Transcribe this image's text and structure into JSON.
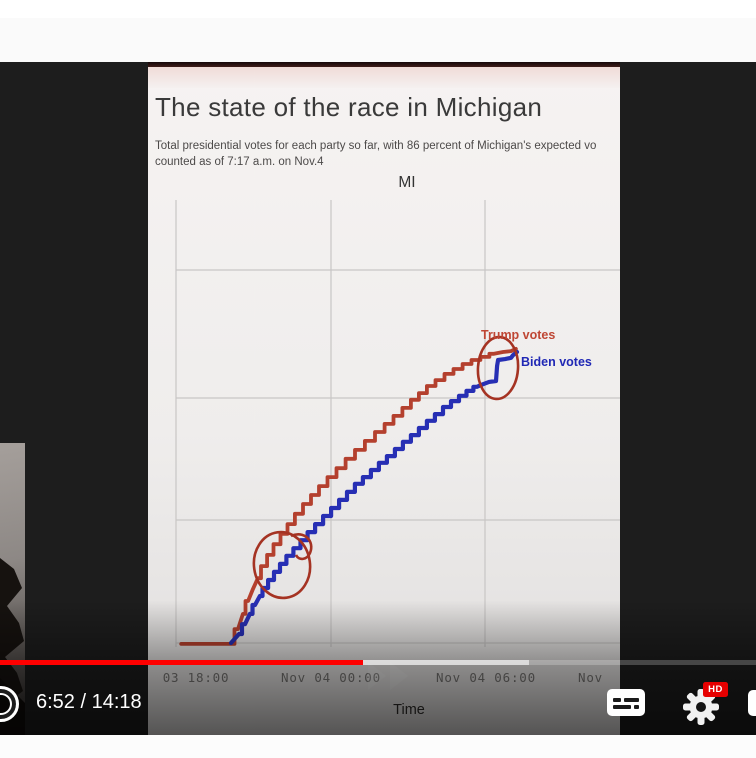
{
  "player": {
    "time_display": "6:52 / 14:18",
    "current_time": "6:52",
    "duration": "14:18",
    "progress_percent": 48,
    "hd_badge_label": "HD",
    "progress_color": "#ff0000",
    "hd_badge_color": "#e60000",
    "icons": {
      "left_partial": "ring-icon",
      "captions": "closed-captions-icon",
      "settings": "gear-icon",
      "right_partial": "miniplayer-icon",
      "seek_ghost": "fast-forward-icon"
    }
  },
  "chart": {
    "title": "The state of the race in Michigan",
    "subtitle_line1": "Total presidential votes for each party so far, with 86 percent of Michigan's expected vo",
    "subtitle_line2": "counted as of 7:17 a.m. on Nov.4",
    "plot_title": "MI",
    "x_axis_label": "Time",
    "x_ticks": [
      "03 18:00",
      "Nov 04 00:00",
      "Nov 04 06:00",
      "Nov"
    ],
    "trump_label": "Trump votes",
    "biden_label": "Biden votes",
    "colors": {
      "trump": "#b4402e",
      "biden": "#272fb4",
      "annotation": "#a53323",
      "gridline": "#c8c6c5"
    }
  },
  "chart_data": {
    "type": "line",
    "title": "MI",
    "xlabel": "Time",
    "ylabel": "",
    "x_unit": "hours since Nov 03 18:00",
    "x_tick_positions_hours": [
      0,
      6,
      12,
      18
    ],
    "x_tick_labels": [
      "03 18:00",
      "Nov 04 00:00",
      "Nov 04 06:00",
      "Nov"
    ],
    "y_axis_note": "y-axis labels not visible; values normalized 0-1 of plot height",
    "legend_position": "inline labels at line ends",
    "grid": true,
    "series": [
      {
        "name": "Trump votes",
        "color": "#b4402e",
        "points": [
          [
            0.2,
            0.007
          ],
          [
            2.13,
            0.007
          ],
          [
            2.4,
            0.04
          ],
          [
            2.59,
            0.074
          ],
          [
            2.79,
            0.103
          ],
          [
            2.98,
            0.13
          ],
          [
            3.17,
            0.154
          ],
          [
            3.41,
            0.181
          ],
          [
            3.64,
            0.206
          ],
          [
            3.91,
            0.23
          ],
          [
            4.18,
            0.253
          ],
          [
            4.45,
            0.275
          ],
          [
            4.76,
            0.298
          ],
          [
            5.07,
            0.32
          ],
          [
            5.38,
            0.34
          ],
          [
            5.69,
            0.36
          ],
          [
            6.04,
            0.38
          ],
          [
            6.39,
            0.4
          ],
          [
            6.74,
            0.421
          ],
          [
            7.12,
            0.441
          ],
          [
            7.51,
            0.461
          ],
          [
            7.9,
            0.481
          ],
          [
            8.25,
            0.499
          ],
          [
            8.59,
            0.517
          ],
          [
            8.94,
            0.535
          ],
          [
            9.25,
            0.553
          ],
          [
            9.56,
            0.568
          ],
          [
            9.87,
            0.584
          ],
          [
            10.22,
            0.597
          ],
          [
            10.57,
            0.611
          ],
          [
            10.92,
            0.622
          ],
          [
            11.27,
            0.633
          ],
          [
            11.61,
            0.642
          ],
          [
            11.96,
            0.649
          ],
          [
            12.31,
            0.656
          ],
          [
            12.66,
            0.66
          ],
          [
            12.97,
            0.662
          ],
          [
            13.16,
            0.667
          ]
        ]
      },
      {
        "name": "Biden votes",
        "color": "#272fb4",
        "points": [
          [
            2.13,
            0.009
          ],
          [
            2.44,
            0.029
          ],
          [
            2.67,
            0.051
          ],
          [
            2.86,
            0.074
          ],
          [
            3.06,
            0.094
          ],
          [
            3.25,
            0.114
          ],
          [
            3.45,
            0.132
          ],
          [
            3.68,
            0.15
          ],
          [
            3.91,
            0.168
          ],
          [
            4.14,
            0.186
          ],
          [
            4.41,
            0.204
          ],
          [
            4.68,
            0.221
          ],
          [
            4.96,
            0.239
          ],
          [
            5.23,
            0.257
          ],
          [
            5.54,
            0.275
          ],
          [
            5.85,
            0.293
          ],
          [
            6.16,
            0.311
          ],
          [
            6.47,
            0.329
          ],
          [
            6.77,
            0.347
          ],
          [
            7.08,
            0.365
          ],
          [
            7.39,
            0.38
          ],
          [
            7.7,
            0.396
          ],
          [
            8.01,
            0.412
          ],
          [
            8.32,
            0.427
          ],
          [
            8.63,
            0.443
          ],
          [
            8.94,
            0.459
          ],
          [
            9.25,
            0.474
          ],
          [
            9.56,
            0.49
          ],
          [
            9.87,
            0.506
          ],
          [
            10.18,
            0.521
          ],
          [
            10.49,
            0.537
          ],
          [
            10.8,
            0.55
          ],
          [
            11.11,
            0.562
          ],
          [
            11.38,
            0.573
          ],
          [
            11.65,
            0.582
          ],
          [
            11.89,
            0.588
          ],
          [
            12.12,
            0.593
          ],
          [
            12.39,
            0.595
          ],
          [
            12.43,
            0.629
          ],
          [
            12.47,
            0.642
          ],
          [
            12.74,
            0.644
          ],
          [
            12.97,
            0.647
          ],
          [
            13.05,
            0.653
          ],
          [
            13.2,
            0.66
          ]
        ]
      }
    ],
    "annotations": [
      "hand-drawn red ellipse circling the point near Nov 4 ~06:30 where the Biden line jumps up to converge with the Trump line",
      "hand-drawn red circle with a curl over the steep early rise of both lines around Nov 3 ~22:00"
    ]
  }
}
